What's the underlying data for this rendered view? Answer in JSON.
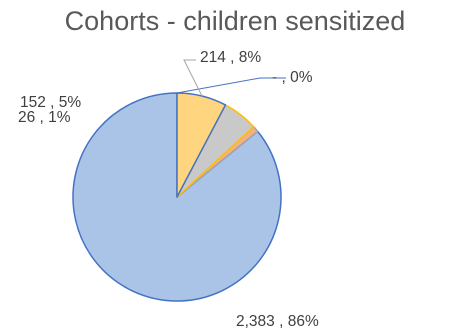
{
  "chart_data": {
    "type": "pie",
    "title": "Cohorts - children sensitized",
    "slices": [
      {
        "value": 0,
        "label": "-   , 0%",
        "color": "#4472C4"
      },
      {
        "value": 2383,
        "label": "2,383 , 86%",
        "color": "#A9C4E6"
      },
      {
        "value": 26,
        "label": "26 , 1%",
        "color": "#F4B183"
      },
      {
        "value": 152,
        "label": "152 , 5%",
        "color": "#C9C9C9"
      },
      {
        "value": 214,
        "label": "214 , 8%",
        "color": "#FFD67F"
      }
    ],
    "legend": "none"
  }
}
